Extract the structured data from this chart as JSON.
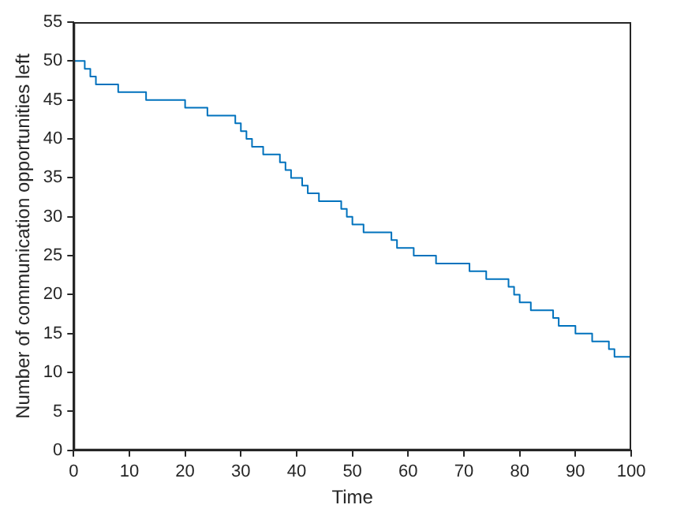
{
  "chart_data": {
    "type": "step",
    "xlabel": "Time",
    "ylabel": "Number of communication opportunities left",
    "x": [
      0,
      2,
      3,
      4,
      8,
      13,
      20,
      24,
      29,
      30,
      31,
      32,
      34,
      37,
      38,
      39,
      41,
      42,
      44,
      48,
      49,
      50,
      52,
      57,
      58,
      61,
      65,
      71,
      74,
      78,
      79,
      80,
      82,
      86,
      87,
      90,
      93,
      96,
      97,
      100
    ],
    "series": [
      {
        "color": "#0072bd",
        "values": [
          50,
          49,
          48,
          47,
          46,
          45,
          44,
          43,
          42,
          41,
          40,
          39,
          38,
          37,
          36,
          35,
          34,
          33,
          32,
          31,
          30,
          29,
          28,
          27,
          26,
          25,
          24,
          23,
          22,
          21,
          20,
          19,
          18,
          17,
          16,
          15,
          14,
          13,
          12,
          12
        ]
      }
    ],
    "xlim": [
      0,
      100
    ],
    "xticks": [
      0,
      10,
      20,
      30,
      40,
      50,
      60,
      70,
      80,
      90,
      100
    ],
    "ylim": [
      0,
      55
    ],
    "yticks": [
      0,
      5,
      10,
      15,
      20,
      25,
      30,
      35,
      40,
      45,
      50,
      55
    ],
    "grid": false,
    "legend": false
  }
}
